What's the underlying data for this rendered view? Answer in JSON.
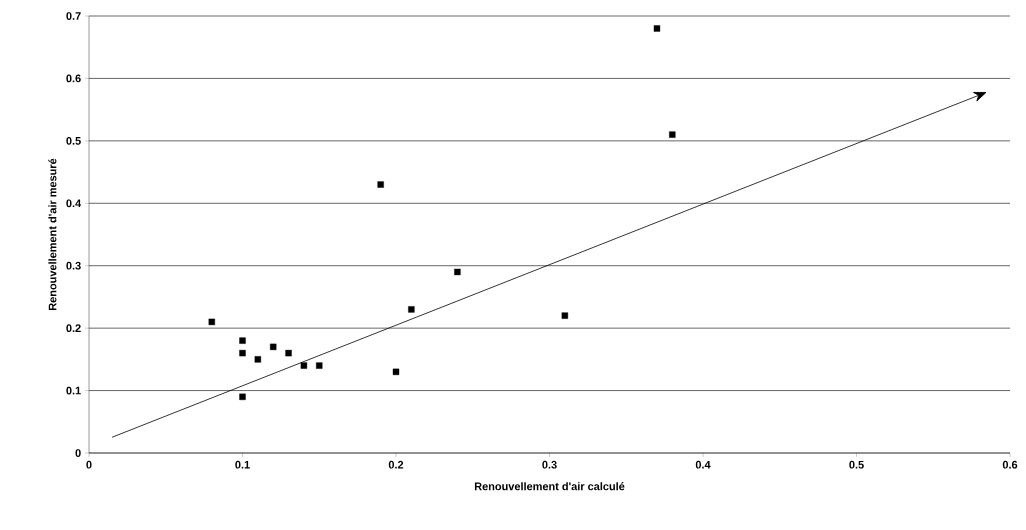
{
  "chart_data": {
    "type": "scatter",
    "xlabel": "Renouvellement d'air calculé",
    "ylabel": "Renouvellement d'air mesuré",
    "xlim": [
      0,
      0.6
    ],
    "ylim": [
      0,
      0.7
    ],
    "xticks": [
      0,
      0.1,
      0.2,
      0.3,
      0.4,
      0.5,
      0.6
    ],
    "yticks": [
      0,
      0.1,
      0.2,
      0.3,
      0.4,
      0.5,
      0.6,
      0.7
    ],
    "grid": "y",
    "series": [
      {
        "color": "#000000",
        "marker": "square",
        "x": [
          0.08,
          0.1,
          0.1,
          0.1,
          0.11,
          0.12,
          0.13,
          0.14,
          0.15,
          0.19,
          0.2,
          0.21,
          0.24,
          0.31,
          0.37,
          0.38
        ],
        "values": [
          0.21,
          0.18,
          0.16,
          0.09,
          0.15,
          0.17,
          0.16,
          0.14,
          0.14,
          0.43,
          0.13,
          0.23,
          0.29,
          0.22,
          0.68,
          0.51
        ]
      }
    ]
  }
}
